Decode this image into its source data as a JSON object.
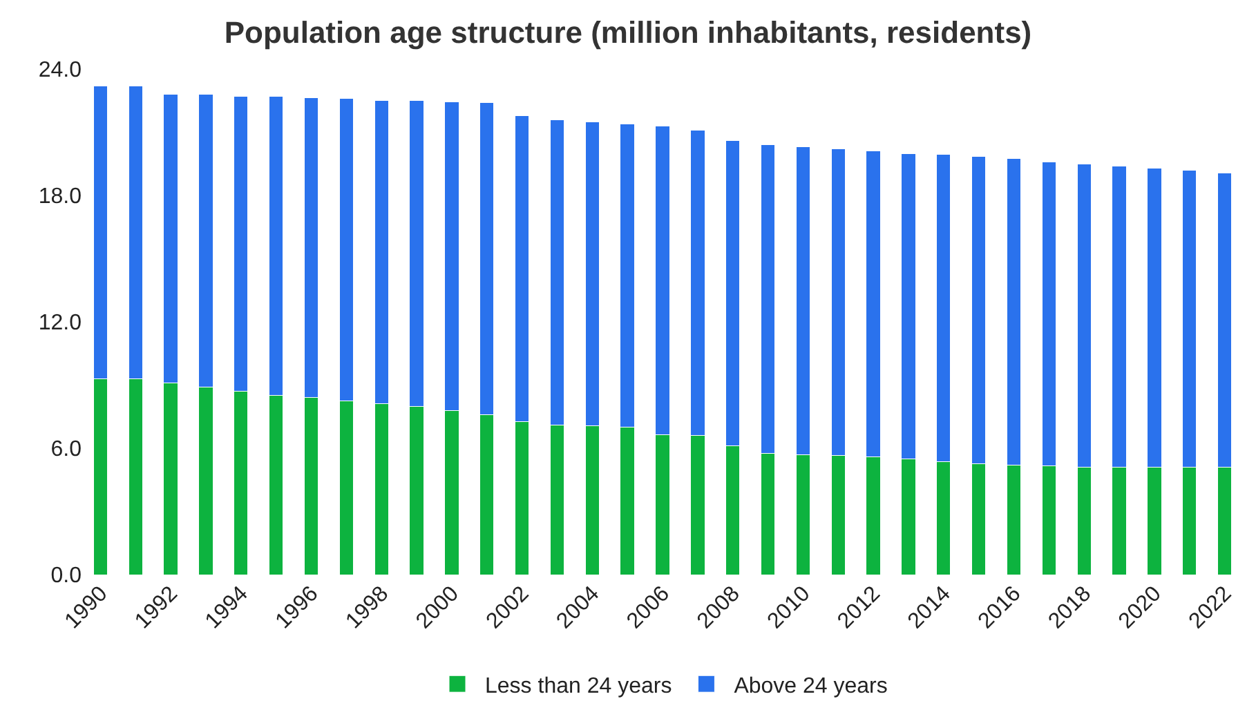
{
  "chart_data": {
    "type": "bar",
    "title": "Population age structure (million inhabitants, residents)",
    "categories": [
      "1990",
      null,
      "1992",
      null,
      "1994",
      null,
      "1996",
      null,
      "1998",
      null,
      "2000",
      null,
      "2002",
      null,
      "2004",
      null,
      "2006",
      null,
      "2008",
      null,
      "2010",
      null,
      "2012",
      null,
      "2014",
      null,
      "2016",
      null,
      "2018",
      null,
      "2020",
      null,
      "2022"
    ],
    "stacked": true,
    "series": [
      {
        "name": "Less than 24 years",
        "color": "#0db33f",
        "values": [
          9.3,
          9.3,
          9.1,
          8.9,
          8.7,
          8.5,
          8.4,
          8.25,
          8.1,
          8.0,
          7.8,
          7.6,
          7.25,
          7.1,
          7.05,
          7.0,
          6.65,
          6.6,
          6.1,
          5.75,
          5.7,
          5.65,
          5.6,
          5.5,
          5.35,
          5.25,
          5.2,
          5.15,
          5.1,
          5.1,
          5.1,
          5.1,
          5.1
        ]
      },
      {
        "name": "Above 24 years",
        "color": "#2a72ed",
        "values": [
          13.9,
          13.9,
          13.7,
          13.9,
          14.0,
          14.2,
          14.25,
          14.35,
          14.4,
          14.5,
          14.65,
          14.8,
          14.55,
          14.5,
          14.45,
          14.4,
          14.65,
          14.5,
          14.5,
          14.65,
          14.6,
          14.55,
          14.5,
          14.5,
          14.6,
          14.6,
          14.55,
          14.45,
          14.4,
          14.3,
          14.2,
          14.1,
          13.95
        ]
      }
    ],
    "ylim": [
      0,
      24
    ],
    "yticks": [
      {
        "value": 0,
        "label": "0.0"
      },
      {
        "value": 6,
        "label": "6.0"
      },
      {
        "value": 12,
        "label": "12.0"
      },
      {
        "value": 18,
        "label": "18.0"
      },
      {
        "value": 24,
        "label": "24.0"
      }
    ],
    "legend": "bottom"
  }
}
